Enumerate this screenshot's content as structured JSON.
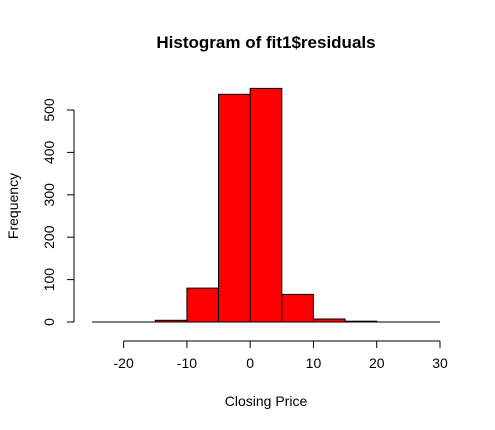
{
  "chart_data": {
    "type": "bar",
    "title": "Histogram of fit1$residuals",
    "xlabel": "Closing Price",
    "ylabel": "Frequency",
    "bin_edges": [
      -25,
      -20,
      -15,
      -10,
      -5,
      0,
      5,
      10,
      15,
      20,
      25,
      30
    ],
    "values": [
      0,
      0,
      4,
      80,
      537,
      551,
      65,
      7,
      2,
      0,
      0
    ],
    "xlim": [
      -25,
      30
    ],
    "ylim": [
      0,
      550
    ],
    "x_ticks": [
      -20,
      -10,
      0,
      10,
      20,
      30
    ],
    "y_ticks": [
      0,
      100,
      200,
      300,
      400,
      500
    ],
    "bar_color": "#ff0000",
    "grid": false
  }
}
